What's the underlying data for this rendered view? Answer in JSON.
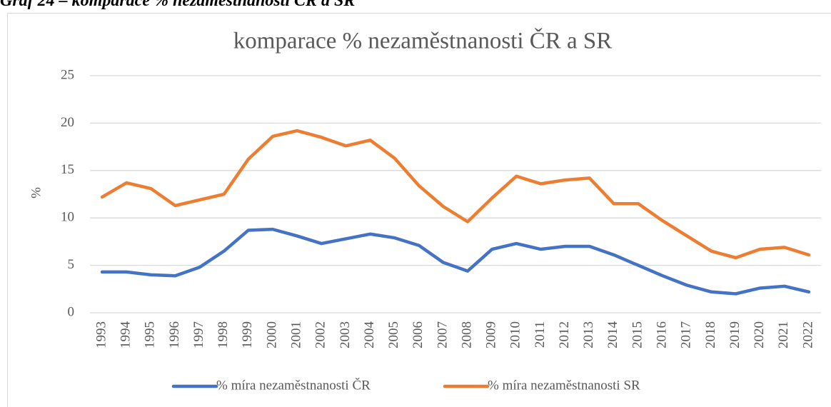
{
  "caption": "Graf 24 – komparace % nezaměstnanosti ČR a SR",
  "chart_data": {
    "type": "line",
    "title": "komparace % nezaměstnanosti ČR a SR",
    "ylabel": "%",
    "categories": [
      "1993",
      "1994",
      "1995",
      "1996",
      "1997",
      "1998",
      "1999",
      "2000",
      "2001",
      "2002",
      "2003",
      "2004",
      "2005",
      "2006",
      "2007",
      "2008",
      "2009",
      "2010",
      "2011",
      "2012",
      "2013",
      "2014",
      "2015",
      "2016",
      "2017",
      "2018",
      "2019",
      "2020",
      "2021",
      "2022"
    ],
    "series": [
      {
        "name": "% míra nezaměstnanosti ČR",
        "color": "#4472c4",
        "values": [
          4.3,
          4.3,
          4.0,
          3.9,
          4.8,
          6.5,
          8.7,
          8.8,
          8.1,
          7.3,
          7.8,
          8.3,
          7.9,
          7.1,
          5.3,
          4.4,
          6.7,
          7.3,
          6.7,
          7.0,
          7.0,
          6.1,
          5.0,
          3.9,
          2.9,
          2.2,
          2.0,
          2.6,
          2.8,
          2.2
        ]
      },
      {
        "name": "% míra nezaměstnanosti SR",
        "color": "#ed7d31",
        "values": [
          12.2,
          13.7,
          13.1,
          11.3,
          11.9,
          12.5,
          16.2,
          18.6,
          19.2,
          18.5,
          17.6,
          18.2,
          16.3,
          13.4,
          11.2,
          9.6,
          12.1,
          14.4,
          13.6,
          14.0,
          14.2,
          11.5,
          11.5,
          9.7,
          8.1,
          6.5,
          5.8,
          6.7,
          6.9,
          6.1
        ]
      }
    ],
    "ylim": [
      0,
      25
    ],
    "yticks": [
      0,
      5,
      10,
      15,
      20,
      25
    ],
    "grid": true,
    "legend": "bottom"
  }
}
